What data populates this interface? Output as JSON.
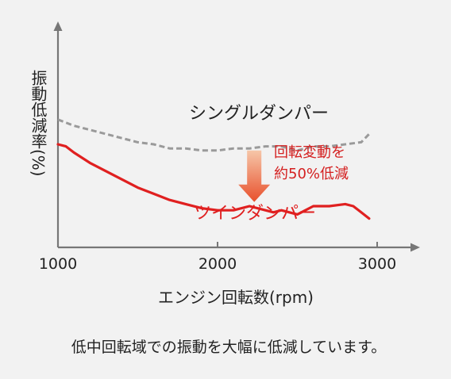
{
  "chart_data": {
    "type": "line",
    "xlabel": "エンジン回転数(rpm)",
    "ylabel": "振動低減率(%)",
    "x_ticks": [
      1000,
      2000,
      3000
    ],
    "xlim": [
      1000,
      3250
    ],
    "ylim": [
      0,
      100
    ],
    "y_ticks_shown": false,
    "grid": false,
    "series": [
      {
        "name": "シングルダンパー",
        "style": "dashed",
        "color": "#9a9a9a",
        "x": [
          1000,
          1100,
          1200,
          1300,
          1400,
          1500,
          1600,
          1700,
          1800,
          1900,
          2000,
          2100,
          2200,
          2300,
          2400,
          2500,
          2600,
          2700,
          2800,
          2900,
          2950
        ],
        "y": [
          62,
          59,
          57,
          55,
          53,
          51,
          50,
          48,
          48,
          47,
          47,
          48,
          48,
          49,
          49,
          47,
          49,
          49,
          50,
          51,
          55
        ]
      },
      {
        "name": "ツインダンパー",
        "style": "solid",
        "color": "#e02020",
        "x": [
          1000,
          1050,
          1100,
          1200,
          1300,
          1400,
          1500,
          1600,
          1700,
          1800,
          1900,
          2000,
          2100,
          2200,
          2300,
          2350,
          2400,
          2500,
          2600,
          2700,
          2800,
          2850,
          2900,
          2950
        ],
        "y": [
          50,
          49,
          46,
          41,
          37,
          33,
          29,
          26,
          23,
          21,
          19,
          18,
          18,
          20,
          18,
          17,
          18,
          16,
          20,
          20,
          21,
          20,
          17,
          14
        ]
      }
    ],
    "annotation": {
      "text_lines": [
        "回転変動を",
        "約50%低減"
      ],
      "color": "#d42020",
      "arrow_x": 2230,
      "arrow_from_y": 47,
      "arrow_to_y": 22
    },
    "caption": "低中回転域での振動を大幅に低減しています。"
  },
  "colors": {
    "axis": "#777777",
    "text": "#222222",
    "background": "#f2f2f2",
    "arrow_top": "#f6c6a8",
    "arrow_bottom": "#e8502c"
  }
}
